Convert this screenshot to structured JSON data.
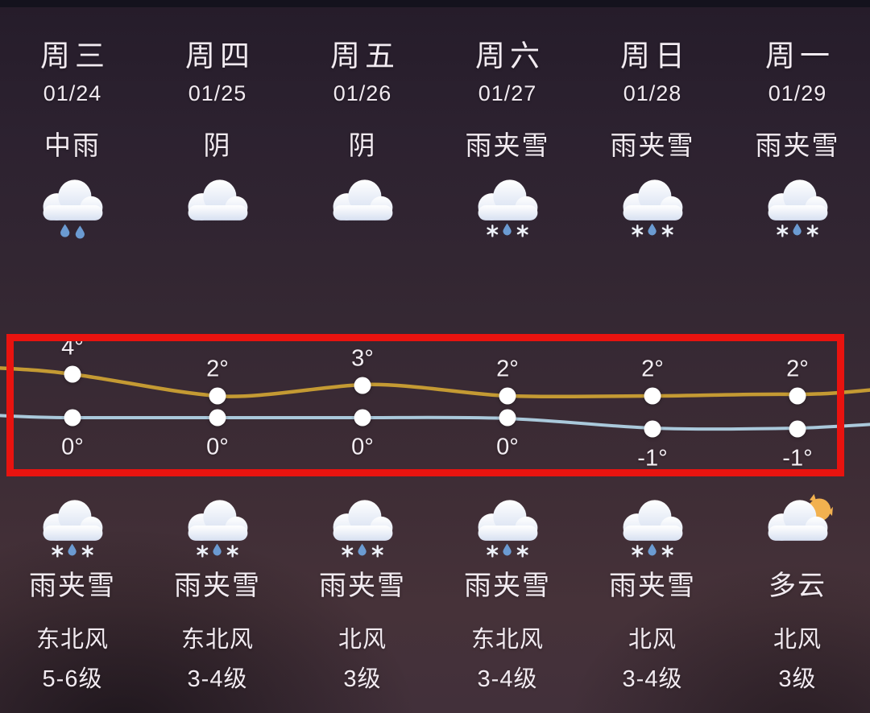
{
  "annotation": {
    "highlight_color": "#e8130f"
  },
  "columns": [
    {
      "day": "周三",
      "date": "01/24",
      "condition": "中雨",
      "icon": "rain-cloud",
      "night": {
        "icon": "sleet-cloud",
        "condition": "雨夹雪",
        "wind_dir": "东北风",
        "wind_level": "5-6级"
      }
    },
    {
      "day": "周四",
      "date": "01/25",
      "condition": "阴",
      "icon": "cloud",
      "night": {
        "icon": "sleet-cloud",
        "condition": "雨夹雪",
        "wind_dir": "东北风",
        "wind_level": "3-4级"
      }
    },
    {
      "day": "周五",
      "date": "01/26",
      "condition": "阴",
      "icon": "cloud",
      "night": {
        "icon": "sleet-cloud",
        "condition": "雨夹雪",
        "wind_dir": "北风",
        "wind_level": "3级"
      }
    },
    {
      "day": "周六",
      "date": "01/27",
      "condition": "雨夹雪",
      "icon": "sleet-cloud",
      "night": {
        "icon": "sleet-cloud",
        "condition": "雨夹雪",
        "wind_dir": "东北风",
        "wind_level": "3-4级"
      }
    },
    {
      "day": "周日",
      "date": "01/28",
      "condition": "雨夹雪",
      "icon": "sleet-cloud",
      "night": {
        "icon": "sleet-cloud",
        "condition": "雨夹雪",
        "wind_dir": "北风",
        "wind_level": "3-4级"
      }
    },
    {
      "day": "周一",
      "date": "01/29",
      "condition": "雨夹雪",
      "icon": "sleet-cloud",
      "night": {
        "icon": "cloud-moon",
        "condition": "多云",
        "wind_dir": "北风",
        "wind_level": "3级"
      }
    }
  ],
  "chart_data": {
    "type": "line",
    "categories": [
      "周三 01/24",
      "周四 01/25",
      "周五 01/26",
      "周六 01/27",
      "周日 01/28",
      "周一 01/29"
    ],
    "series": [
      {
        "name": "day-high",
        "color": "#c49a33",
        "values": [
          4,
          2,
          3,
          2,
          2,
          2
        ],
        "labels": [
          "4°",
          "2°",
          "3°",
          "2°",
          "2°",
          "2°"
        ]
      },
      {
        "name": "night-low",
        "color": "#aac9db",
        "values": [
          0,
          0,
          0,
          0,
          -1,
          -1
        ],
        "labels": [
          "0°",
          "0°",
          "0°",
          "0°",
          "-1°",
          "-1°"
        ]
      }
    ],
    "unit": "°C",
    "point_color": "#ffffff",
    "grid": false,
    "legend": false
  }
}
